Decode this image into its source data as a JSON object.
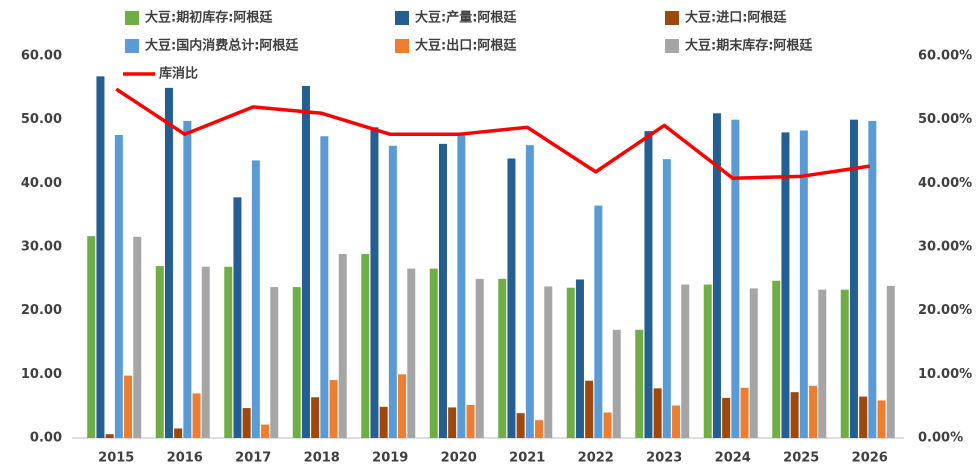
{
  "chart_data": {
    "type": "bar",
    "categories": [
      "2015",
      "2016",
      "2017",
      "2018",
      "2019",
      "2020",
      "2021",
      "2022",
      "2023",
      "2024",
      "2025",
      "2026"
    ],
    "series": [
      {
        "name": "大豆:期初库存:阿根廷",
        "color": "#70ad47",
        "values": [
          31.7,
          27.0,
          26.9,
          23.7,
          28.9,
          26.6,
          25.0,
          23.6,
          17.0,
          24.1,
          24.7,
          23.3
        ]
      },
      {
        "name": "大豆:产量:阿根廷",
        "color": "#255e91",
        "values": [
          56.8,
          55.0,
          37.8,
          55.3,
          48.8,
          46.2,
          43.9,
          24.9,
          48.2,
          51.0,
          48.0,
          50.0
        ]
      },
      {
        "name": "大豆:进口:阿根廷",
        "color": "#9e480e",
        "values": [
          0.6,
          1.5,
          4.7,
          6.4,
          4.9,
          4.8,
          3.9,
          9.0,
          7.8,
          6.3,
          7.2,
          6.5
        ]
      },
      {
        "name": "大豆:国内消费总计:阿根廷",
        "color": "#5b9bd5",
        "values": [
          47.6,
          49.8,
          43.6,
          47.4,
          45.9,
          47.6,
          46.0,
          36.5,
          43.8,
          50.0,
          48.3,
          49.8
        ]
      },
      {
        "name": "大豆:出口:阿根廷",
        "color": "#ed7d31",
        "values": [
          9.8,
          7.0,
          2.1,
          9.1,
          10.0,
          5.2,
          2.8,
          4.0,
          5.1,
          7.9,
          8.2,
          5.9
        ]
      },
      {
        "name": "大豆:期末库存:阿根廷",
        "color": "#a5a5a5",
        "values": [
          31.6,
          26.9,
          23.7,
          28.9,
          26.6,
          25.0,
          23.8,
          17.0,
          24.1,
          23.5,
          23.3,
          23.9
        ]
      },
      {
        "name": "库消比",
        "color": "#ff0000",
        "type": "line",
        "axis": "y2",
        "values": [
          54.8,
          47.7,
          52.0,
          51.0,
          47.7,
          47.7,
          48.8,
          41.8,
          49.1,
          40.8,
          41.1,
          42.7
        ]
      }
    ],
    "ylim": [
      0,
      60
    ],
    "yticks": [
      {
        "value": 0,
        "label": "0.00"
      },
      {
        "value": 10,
        "label": "10.00"
      },
      {
        "value": 20,
        "label": "20.00"
      },
      {
        "value": 30,
        "label": "30.00"
      },
      {
        "value": 40,
        "label": "40.00"
      },
      {
        "value": 50,
        "label": "50.00"
      },
      {
        "value": 60,
        "label": "60.00"
      }
    ],
    "y2lim": [
      0,
      60
    ],
    "y2ticks": [
      {
        "value": 0,
        "label": "0.00%"
      },
      {
        "value": 10,
        "label": "10.00%"
      },
      {
        "value": 20,
        "label": "20.00%"
      },
      {
        "value": 30,
        "label": "30.00%"
      },
      {
        "value": 40,
        "label": "40.00%"
      },
      {
        "value": 50,
        "label": "50.00%"
      },
      {
        "value": 60,
        "label": "60.00%"
      }
    ],
    "grid": false,
    "legend": "top"
  }
}
